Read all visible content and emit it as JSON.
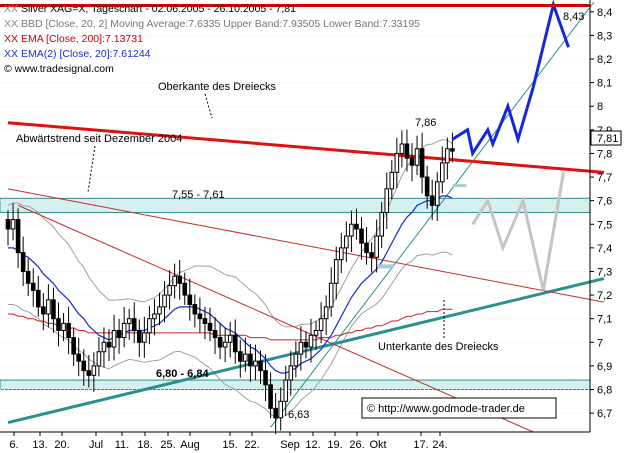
{
  "legend": {
    "line1_swatch": "XX",
    "line1": "Silver XAG=X, Tageschart - 02.06.2005 - 26.10.2005 - 7,81",
    "line2_swatch": "XX",
    "line2": "BBD [Close, 20, 2] Moving Average:7.6335 Upper Band:7.93505 Lower Band:7.33195",
    "line3_swatch": "XX",
    "line3": "EMA [Close, 200]:7.13731",
    "line4_swatch": "XX",
    "line4": "EMA(2) [Close, 20]:7.61244",
    "line5": "© www.tradesignal.com"
  },
  "colors": {
    "price": "#000000",
    "bollinger": "#a0a0a0",
    "ema20": "#1a2ecc",
    "ema200": "#cc2222",
    "resistance": "#e01010",
    "trendline": "#2a8f8f",
    "zone_fill": "#d6f0ef",
    "projection_blue": "#1428d8",
    "projection_gray": "#c4c4c4",
    "legend_red": "#cc0000",
    "legend_blue": "#1a2ecc"
  },
  "annotations": {
    "top_right": "8,43",
    "high": "7,86",
    "low": "6,63",
    "upper_triangle": "Oberkante des Dreiecks",
    "downtrend": "Abwärtstrend seit Dezember 2004",
    "zone_upper": "7,55 - 7,61",
    "zone_lower": "6,80 - 6,84",
    "lower_triangle": "Unterkante des Dreiecks",
    "copyright": "© http://www.godmode-trader.de",
    "last_price": "7,81"
  },
  "chart_data": {
    "type": "candlestick",
    "title": "Silver XAG=X, Tageschart - 02.06.2005 - 26.10.2005 - 7,81",
    "y_ticks": [
      "6,7",
      "6,8",
      "6,9",
      "7",
      "7,1",
      "7,2",
      "7,3",
      "7,4",
      "7,5",
      "7,6",
      "7,7",
      "7,8",
      "7,9",
      "8",
      "8,1",
      "8,2",
      "8,3",
      "8,4"
    ],
    "x_ticks": [
      "6.",
      "13.",
      "20.",
      "Jul",
      "11.",
      "18.",
      "25.",
      "Aug",
      "15.",
      "22.",
      "Sep",
      "12.",
      "19.",
      "26.",
      "Okt",
      "17.",
      "24."
    ],
    "ylim": [
      6.62,
      8.45
    ],
    "close": [
      7.48,
      7.52,
      7.38,
      7.3,
      7.25,
      7.22,
      7.15,
      7.12,
      7.18,
      7.1,
      7.05,
      7.08,
      7.02,
      6.95,
      6.92,
      6.88,
      6.86,
      6.9,
      6.96,
      7.0,
      6.98,
      7.05,
      7.02,
      7.08,
      7.1,
      7.05,
      7.0,
      7.04,
      7.1,
      7.12,
      7.15,
      7.2,
      7.24,
      7.28,
      7.25,
      7.2,
      7.16,
      7.12,
      7.1,
      7.08,
      7.05,
      7.02,
      6.98,
      7.0,
      7.03,
      6.96,
      6.92,
      6.95,
      6.9,
      6.92,
      6.88,
      6.82,
      6.72,
      6.68,
      6.75,
      6.84,
      6.9,
      6.95,
      7.0,
      6.98,
      7.03,
      7.05,
      7.1,
      7.15,
      7.25,
      7.35,
      7.4,
      7.45,
      7.5,
      7.48,
      7.42,
      7.38,
      7.36,
      7.45,
      7.55,
      7.65,
      7.72,
      7.8,
      7.84,
      7.78,
      7.75,
      7.82,
      7.7,
      7.62,
      7.58,
      7.68,
      7.76,
      7.82,
      7.81
    ],
    "ema20": [
      7.4,
      7.4,
      7.39,
      7.37,
      7.36,
      7.34,
      7.32,
      7.29,
      7.27,
      7.25,
      7.22,
      7.2,
      7.18,
      7.15,
      7.12,
      7.1,
      7.07,
      7.05,
      7.03,
      7.02,
      7.01,
      7.02,
      7.03,
      7.04,
      7.05,
      7.05,
      7.05,
      7.05,
      7.06,
      7.07,
      7.08,
      7.1,
      7.12,
      7.14,
      7.15,
      7.15,
      7.15,
      7.15,
      7.14,
      7.13,
      7.12,
      7.1,
      7.08,
      7.06,
      7.05,
      7.04,
      7.02,
      7.0,
      6.98,
      6.97,
      6.95,
      6.93,
      6.9,
      6.88,
      6.87,
      6.87,
      6.88,
      6.89,
      6.91,
      6.92,
      6.93,
      6.95,
      6.97,
      7.0,
      7.03,
      7.07,
      7.11,
      7.15,
      7.19,
      7.22,
      7.25,
      7.27,
      7.29,
      7.31,
      7.34,
      7.38,
      7.42,
      7.46,
      7.5,
      7.53,
      7.55,
      7.58,
      7.59,
      7.6,
      7.6,
      7.61,
      7.62,
      7.62,
      7.61
    ],
    "ema200": [
      7.12,
      7.12,
      7.11,
      7.11,
      7.1,
      7.1,
      7.09,
      7.09,
      7.08,
      7.08,
      7.07,
      7.07,
      7.06,
      7.06,
      7.05,
      7.05,
      7.04,
      7.04,
      7.04,
      7.04,
      7.04,
      7.04,
      7.04,
      7.04,
      7.04,
      7.04,
      7.04,
      7.04,
      7.04,
      7.04,
      7.04,
      7.04,
      7.04,
      7.04,
      7.04,
      7.04,
      7.04,
      7.04,
      7.04,
      7.04,
      7.04,
      7.03,
      7.03,
      7.03,
      7.03,
      7.03,
      7.03,
      7.03,
      7.02,
      7.02,
      7.02,
      7.02,
      7.01,
      7.01,
      7.01,
      7.01,
      7.01,
      7.01,
      7.01,
      7.01,
      7.01,
      7.01,
      7.02,
      7.02,
      7.02,
      7.03,
      7.03,
      7.04,
      7.04,
      7.05,
      7.05,
      7.06,
      7.06,
      7.07,
      7.07,
      7.08,
      7.09,
      7.09,
      7.1,
      7.11,
      7.11,
      7.12,
      7.12,
      7.13,
      7.13,
      7.13,
      7.14,
      7.14,
      7.14
    ],
    "zones": [
      {
        "low": 7.55,
        "high": 7.61
      },
      {
        "low": 6.8,
        "high": 6.84
      }
    ],
    "trendlines": [
      {
        "name": "Oberkante des Dreiecks",
        "from": [
          0,
          7.93
        ],
        "to": [
          118,
          7.72
        ]
      },
      {
        "name": "Unterkante des Dreiecks",
        "from": [
          0,
          6.66
        ],
        "to": [
          118,
          7.27
        ]
      },
      {
        "name": "Abwärtstrend seit Dezember 2004",
        "from": [
          0,
          7.65
        ],
        "to": [
          118,
          7.17
        ]
      }
    ]
  }
}
